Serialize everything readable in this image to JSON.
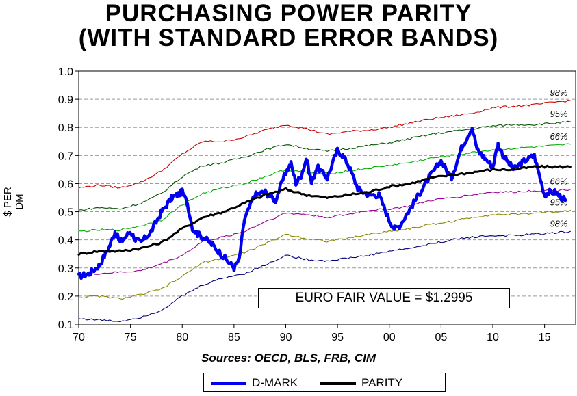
{
  "chart_data": {
    "type": "line",
    "title": "PURCHASING POWER PARITY",
    "subtitle": "(WITH STANDARD ERROR BANDS)",
    "ylabel": "$ PER DM",
    "xlabel": "",
    "source_note": "Sources:  OECD, BLS, FRB, CIM",
    "annotation": "EURO FAIR VALUE = $1.2995",
    "xlim": [
      1970,
      2018
    ],
    "ylim": [
      0.1,
      1.0
    ],
    "x_tick_labels": [
      "70",
      "75",
      "80",
      "85",
      "90",
      "95",
      "00",
      "05",
      "10",
      "15"
    ],
    "x_tick_values": [
      1970,
      1975,
      1980,
      1985,
      1990,
      1995,
      2000,
      2005,
      2010,
      2015
    ],
    "y_tick_labels": [
      "0.1",
      "0.2",
      "0.3",
      "0.4",
      "0.5",
      "0.6",
      "0.7",
      "0.8",
      "0.9",
      "1.0"
    ],
    "y_tick_values": [
      0.1,
      0.2,
      0.3,
      0.4,
      0.5,
      0.6,
      0.7,
      0.8,
      0.9,
      1.0
    ],
    "grid": "horizontal dashed",
    "legend_placement": "bottom-center",
    "series": [
      {
        "name": "D-MARK",
        "color": "#0000ee",
        "in_legend": true,
        "x": [
          1970,
          1971,
          1972,
          1973,
          1973.5,
          1974,
          1975,
          1975.5,
          1976,
          1977,
          1978,
          1979,
          1979.5,
          1980,
          1980.5,
          1981,
          1981.5,
          1982,
          1983,
          1984,
          1985,
          1985.5,
          1986,
          1987,
          1988,
          1989,
          1990,
          1990.5,
          1991,
          1991.5,
          1992,
          1992.5,
          1993,
          1994,
          1995,
          1995.5,
          1996,
          1997,
          1998,
          1999,
          2000,
          2000.5,
          2001,
          2002,
          2003,
          2004,
          2005,
          2006,
          2007,
          2008,
          2008.5,
          2009,
          2010,
          2010.5,
          2011,
          2012,
          2013,
          2014,
          2015,
          2015.5,
          2016,
          2017
        ],
        "values": [
          0.27,
          0.28,
          0.31,
          0.38,
          0.43,
          0.39,
          0.43,
          0.4,
          0.39,
          0.43,
          0.5,
          0.55,
          0.56,
          0.57,
          0.53,
          0.44,
          0.42,
          0.41,
          0.38,
          0.34,
          0.3,
          0.33,
          0.47,
          0.56,
          0.57,
          0.54,
          0.64,
          0.67,
          0.6,
          0.63,
          0.69,
          0.6,
          0.66,
          0.62,
          0.72,
          0.7,
          0.67,
          0.58,
          0.56,
          0.56,
          0.47,
          0.44,
          0.45,
          0.51,
          0.57,
          0.63,
          0.68,
          0.62,
          0.73,
          0.8,
          0.72,
          0.7,
          0.66,
          0.74,
          0.7,
          0.65,
          0.68,
          0.7,
          0.56,
          0.57,
          0.57,
          0.54
        ]
      },
      {
        "name": "PARITY",
        "color": "#000000",
        "in_legend": true,
        "x": [
          1970,
          1972,
          1974,
          1976,
          1978,
          1980,
          1982,
          1984,
          1986,
          1988,
          1990,
          1992,
          1994,
          1996,
          1998,
          2000,
          2002,
          2004,
          2006,
          2008,
          2010,
          2012,
          2014,
          2016,
          2017.5
        ],
        "values": [
          0.35,
          0.36,
          0.36,
          0.37,
          0.39,
          0.44,
          0.48,
          0.5,
          0.53,
          0.56,
          0.58,
          0.56,
          0.55,
          0.56,
          0.57,
          0.59,
          0.6,
          0.62,
          0.63,
          0.64,
          0.65,
          0.65,
          0.66,
          0.66,
          0.66
        ]
      },
      {
        "name": "98% upper",
        "label": "98%",
        "color": "#cc0000",
        "in_legend": false,
        "x": [
          1970,
          1972,
          1974,
          1976,
          1978,
          1980,
          1982,
          1984,
          1986,
          1988,
          1990,
          1992,
          1994,
          1996,
          1998,
          2000,
          2002,
          2004,
          2006,
          2008,
          2010,
          2012,
          2014,
          2016,
          2017.5
        ],
        "values": [
          0.585,
          0.595,
          0.585,
          0.605,
          0.645,
          0.705,
          0.75,
          0.75,
          0.765,
          0.79,
          0.81,
          0.795,
          0.775,
          0.785,
          0.79,
          0.8,
          0.815,
          0.83,
          0.84,
          0.85,
          0.87,
          0.875,
          0.88,
          0.89,
          0.895
        ]
      },
      {
        "name": "95% upper",
        "label": "95%",
        "color": "#005500",
        "in_legend": false,
        "x": [
          1970,
          1972,
          1974,
          1976,
          1978,
          1980,
          1982,
          1984,
          1986,
          1988,
          1990,
          1992,
          1994,
          1996,
          1998,
          2000,
          2002,
          2004,
          2006,
          2008,
          2010,
          2012,
          2014,
          2016,
          2017.5
        ],
        "values": [
          0.505,
          0.515,
          0.51,
          0.53,
          0.565,
          0.625,
          0.665,
          0.675,
          0.695,
          0.72,
          0.74,
          0.725,
          0.715,
          0.725,
          0.735,
          0.745,
          0.76,
          0.775,
          0.785,
          0.795,
          0.805,
          0.81,
          0.81,
          0.815,
          0.82
        ]
      },
      {
        "name": "66% upper",
        "label": "66%",
        "color": "#00aa00",
        "in_legend": false,
        "x": [
          1970,
          1972,
          1974,
          1976,
          1978,
          1980,
          1982,
          1984,
          1986,
          1988,
          1990,
          1992,
          1994,
          1996,
          1998,
          2000,
          2002,
          2004,
          2006,
          2008,
          2010,
          2012,
          2014,
          2016,
          2017.5
        ],
        "values": [
          0.43,
          0.435,
          0.435,
          0.45,
          0.47,
          0.525,
          0.565,
          0.585,
          0.6,
          0.625,
          0.65,
          0.64,
          0.635,
          0.645,
          0.655,
          0.665,
          0.675,
          0.69,
          0.7,
          0.71,
          0.72,
          0.725,
          0.73,
          0.735,
          0.74
        ]
      },
      {
        "name": "66% lower",
        "label": "66%",
        "color": "#990099",
        "in_legend": false,
        "x": [
          1970,
          1972,
          1974,
          1976,
          1978,
          1980,
          1982,
          1984,
          1986,
          1988,
          1990,
          1992,
          1994,
          1996,
          1998,
          2000,
          2002,
          2004,
          2006,
          2008,
          2010,
          2012,
          2014,
          2016,
          2017.5
        ],
        "values": [
          0.275,
          0.28,
          0.285,
          0.29,
          0.315,
          0.345,
          0.395,
          0.41,
          0.43,
          0.465,
          0.495,
          0.49,
          0.48,
          0.49,
          0.505,
          0.51,
          0.52,
          0.54,
          0.55,
          0.56,
          0.57,
          0.57,
          0.575,
          0.575,
          0.58
        ]
      },
      {
        "name": "95% lower",
        "label": "95%",
        "color": "#888800",
        "in_legend": false,
        "x": [
          1970,
          1972,
          1974,
          1976,
          1978,
          1980,
          1982,
          1984,
          1986,
          1988,
          1990,
          1992,
          1994,
          1996,
          1998,
          2000,
          2002,
          2004,
          2006,
          2008,
          2010,
          2012,
          2014,
          2016,
          2017.5
        ],
        "values": [
          0.195,
          0.2,
          0.19,
          0.205,
          0.225,
          0.27,
          0.32,
          0.335,
          0.355,
          0.385,
          0.42,
          0.405,
          0.395,
          0.405,
          0.42,
          0.43,
          0.44,
          0.455,
          0.465,
          0.48,
          0.49,
          0.49,
          0.495,
          0.5,
          0.505
        ]
      },
      {
        "name": "98% lower",
        "label": "98%",
        "color": "#000077",
        "in_legend": false,
        "x": [
          1970,
          1972,
          1974,
          1976,
          1978,
          1980,
          1982,
          1984,
          1986,
          1988,
          1990,
          1992,
          1994,
          1996,
          1998,
          2000,
          2002,
          2004,
          2006,
          2008,
          2010,
          2012,
          2014,
          2016,
          2017.5
        ],
        "values": [
          0.12,
          0.115,
          0.11,
          0.125,
          0.15,
          0.2,
          0.24,
          0.265,
          0.28,
          0.31,
          0.345,
          0.33,
          0.325,
          0.335,
          0.345,
          0.36,
          0.37,
          0.385,
          0.4,
          0.41,
          0.415,
          0.415,
          0.42,
          0.425,
          0.43
        ]
      }
    ]
  }
}
